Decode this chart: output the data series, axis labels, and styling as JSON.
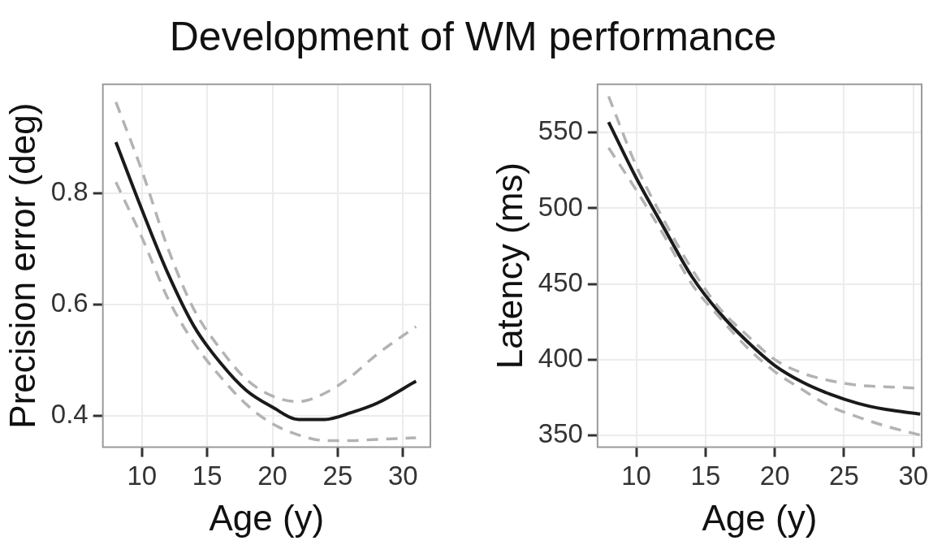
{
  "chart_data": [
    {
      "type": "line",
      "title": "Development of WM performance",
      "xlabel": "Age (y)",
      "ylabel": "Precision error (deg)",
      "x": [
        8,
        10,
        12,
        14,
        16,
        18,
        20,
        22,
        24,
        26,
        28,
        31
      ],
      "series": [
        {
          "color": "#b3b3b3",
          "line_style": "dashed",
          "values": [
            0.964,
            0.84,
            0.7,
            0.59,
            0.52,
            0.465,
            0.435,
            0.425,
            0.44,
            0.47,
            0.51,
            0.56
          ]
        },
        {
          "color": "#b3b3b3",
          "line_style": "dashed",
          "values": [
            0.82,
            0.72,
            0.61,
            0.53,
            0.47,
            0.42,
            0.385,
            0.365,
            0.355,
            0.355,
            0.357,
            0.36
          ]
        },
        {
          "color": "#1a1a1a",
          "line_style": "solid",
          "values": [
            0.892,
            0.77,
            0.655,
            0.56,
            0.495,
            0.445,
            0.415,
            0.393,
            0.393,
            0.405,
            0.422,
            0.462
          ]
        }
      ],
      "xlim": [
        7,
        32.1
      ],
      "xticks": [
        10,
        15,
        20,
        25,
        30
      ],
      "ylim": [
        0.343,
        0.996
      ],
      "yticks": [
        0.4,
        0.6,
        0.8
      ],
      "grid": true,
      "legend": false,
      "marker": "none"
    },
    {
      "type": "line",
      "xlabel": "Age (y)",
      "ylabel": "Latency (ms)",
      "x": [
        8,
        10,
        12,
        14,
        16,
        18,
        20,
        22,
        24,
        26,
        28,
        30.5
      ],
      "series": [
        {
          "color": "#b3b3b3",
          "line_style": "dashed",
          "values": [
            574,
            528,
            492,
            460,
            434,
            416,
            400,
            391,
            386,
            383,
            382,
            381
          ]
        },
        {
          "color": "#b3b3b3",
          "line_style": "dashed",
          "values": [
            540,
            512,
            482,
            450,
            428,
            408,
            392,
            380,
            369,
            362,
            356,
            350
          ]
        },
        {
          "color": "#1a1a1a",
          "line_style": "solid",
          "values": [
            557,
            520,
            487,
            455,
            431,
            412,
            396,
            385,
            377,
            371,
            367,
            364
          ]
        }
      ],
      "xlim": [
        7.2,
        30.6
      ],
      "xticks": [
        10,
        15,
        20,
        25,
        30
      ],
      "ylim": [
        342,
        582
      ],
      "yticks": [
        350,
        400,
        450,
        500,
        550
      ],
      "grid": true,
      "legend": false,
      "marker": "none"
    }
  ]
}
